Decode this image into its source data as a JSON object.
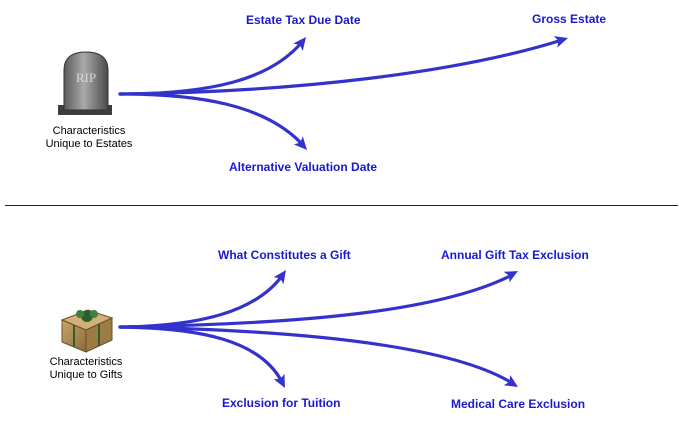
{
  "colors": {
    "arrow": "#3333cc",
    "link": "#1a1acc",
    "divider": "#222222"
  },
  "estates": {
    "icon": "tombstone-icon",
    "icon_text": "RIP",
    "caption_line1": "Characteristics",
    "caption_line2": "Unique to Estates",
    "links": [
      "Estate Tax Due Date",
      "Gross Estate",
      "Alternative Valuation Date"
    ]
  },
  "gifts": {
    "icon": "gift-box-icon",
    "caption_line1": "Characteristics",
    "caption_line2": "Unique to Gifts",
    "links": [
      "What Constitutes a Gift",
      "Annual Gift Tax Exclusion",
      "Exclusion for Tuition",
      "Medical Care Exclusion"
    ]
  }
}
